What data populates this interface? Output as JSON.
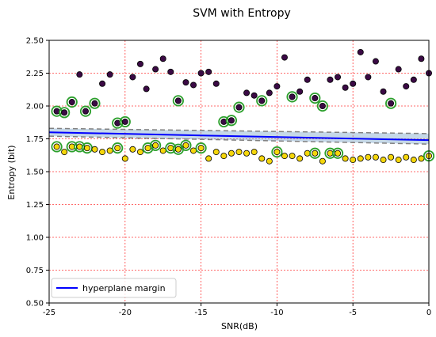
{
  "chart_data": {
    "type": "scatter",
    "title": "SVM with Entropy",
    "xlabel": "SNR(dB)",
    "ylabel": "Entropy (bit)",
    "xlim": [
      -25,
      0
    ],
    "ylim": [
      0.5,
      2.5
    ],
    "xticks": [
      -25,
      -20,
      -15,
      -10,
      -5,
      0
    ],
    "xtick_labels": [
      "-25",
      "-20",
      "-15",
      "-10",
      "-5",
      "0"
    ],
    "yticks": [
      0.5,
      0.75,
      1.0,
      1.25,
      1.5,
      1.75,
      2.0,
      2.25,
      2.5
    ],
    "ytick_labels": [
      "0.50",
      "0.75",
      "1.00",
      "1.25",
      "1.50",
      "1.75",
      "2.00",
      "2.25",
      "2.50"
    ],
    "grid": true,
    "legend_position": "bottom-left",
    "colors": {
      "class_high": "#3b0a45",
      "class_low": "#f5d60a",
      "support_ring": "#2ca02c",
      "hyperplane": "#0000ff",
      "margin_band": "#7fa8cc",
      "margin_lines": "#808080",
      "grid": "#ff3b3b"
    },
    "hyperplane": {
      "name": "hyperplane margin",
      "x": [
        -25,
        0
      ],
      "y": [
        1.8,
        1.74
      ]
    },
    "margin_upper": {
      "x": [
        -25,
        0
      ],
      "y": [
        1.83,
        1.79
      ]
    },
    "margin_lower": {
      "x": [
        -25,
        0
      ],
      "y": [
        1.77,
        1.71
      ]
    },
    "series": [
      {
        "label": "class_high",
        "points": [
          [
            -24.5,
            1.96
          ],
          [
            -24,
            1.95
          ],
          [
            -23.5,
            2.03
          ],
          [
            -23,
            2.24
          ],
          [
            -22.6,
            1.96
          ],
          [
            -22,
            2.02
          ],
          [
            -21.5,
            2.17
          ],
          [
            -21,
            2.24
          ],
          [
            -20.5,
            1.87
          ],
          [
            -20,
            1.88
          ],
          [
            -19.5,
            2.22
          ],
          [
            -19,
            2.32
          ],
          [
            -18.6,
            2.13
          ],
          [
            -18,
            2.28
          ],
          [
            -17.5,
            2.36
          ],
          [
            -17,
            2.26
          ],
          [
            -16.5,
            2.04
          ],
          [
            -16,
            2.18
          ],
          [
            -15.5,
            2.16
          ],
          [
            -15,
            2.25
          ],
          [
            -14.5,
            2.26
          ],
          [
            -14,
            2.17
          ],
          [
            -13.5,
            1.88
          ],
          [
            -13,
            1.89
          ],
          [
            -12.5,
            1.99
          ],
          [
            -12,
            2.1
          ],
          [
            -11.5,
            2.08
          ],
          [
            -11,
            2.04
          ],
          [
            -10.5,
            2.1
          ],
          [
            -10,
            2.15
          ],
          [
            -9.5,
            2.37
          ],
          [
            -9,
            2.07
          ],
          [
            -8.5,
            2.11
          ],
          [
            -8,
            2.2
          ],
          [
            -7.5,
            2.06
          ],
          [
            -7,
            2.0
          ],
          [
            -6.5,
            2.2
          ],
          [
            -6,
            2.22
          ],
          [
            -5.5,
            2.14
          ],
          [
            -5,
            2.17
          ],
          [
            -4.5,
            2.41
          ],
          [
            -4,
            2.22
          ],
          [
            -3.5,
            2.34
          ],
          [
            -3,
            2.11
          ],
          [
            -2.5,
            2.02
          ],
          [
            -2,
            2.28
          ],
          [
            -1.5,
            2.15
          ],
          [
            -1,
            2.2
          ],
          [
            -0.5,
            2.36
          ],
          [
            0,
            2.25
          ]
        ],
        "support": [
          0,
          1,
          2,
          4,
          5,
          8,
          9,
          16,
          22,
          23,
          24,
          27,
          31,
          34,
          35,
          44
        ]
      },
      {
        "label": "class_low",
        "points": [
          [
            -24.5,
            1.69
          ],
          [
            -24,
            1.65
          ],
          [
            -23.5,
            1.69
          ],
          [
            -23,
            1.69
          ],
          [
            -22.5,
            1.68
          ],
          [
            -22,
            1.67
          ],
          [
            -21.5,
            1.65
          ],
          [
            -21,
            1.66
          ],
          [
            -20.5,
            1.68
          ],
          [
            -20,
            1.6
          ],
          [
            -19.5,
            1.67
          ],
          [
            -19,
            1.65
          ],
          [
            -18.5,
            1.68
          ],
          [
            -18,
            1.7
          ],
          [
            -17.5,
            1.66
          ],
          [
            -17,
            1.68
          ],
          [
            -16.5,
            1.67
          ],
          [
            -16,
            1.7
          ],
          [
            -15.5,
            1.66
          ],
          [
            -15,
            1.68
          ],
          [
            -14.5,
            1.6
          ],
          [
            -14,
            1.65
          ],
          [
            -13.5,
            1.62
          ],
          [
            -13,
            1.64
          ],
          [
            -12.5,
            1.65
          ],
          [
            -12,
            1.64
          ],
          [
            -11.5,
            1.65
          ],
          [
            -11,
            1.6
          ],
          [
            -10.5,
            1.58
          ],
          [
            -10,
            1.65
          ],
          [
            -9.5,
            1.62
          ],
          [
            -9,
            1.62
          ],
          [
            -8.5,
            1.6
          ],
          [
            -8,
            1.64
          ],
          [
            -7.5,
            1.64
          ],
          [
            -7,
            1.58
          ],
          [
            -6.5,
            1.64
          ],
          [
            -6,
            1.64
          ],
          [
            -5.5,
            1.6
          ],
          [
            -5,
            1.59
          ],
          [
            -4.5,
            1.6
          ],
          [
            -4,
            1.61
          ],
          [
            -3.5,
            1.61
          ],
          [
            -3,
            1.59
          ],
          [
            -2.5,
            1.61
          ],
          [
            -2,
            1.59
          ],
          [
            -1.5,
            1.61
          ],
          [
            -1,
            1.59
          ],
          [
            -0.5,
            1.6
          ],
          [
            0,
            1.62
          ]
        ],
        "support": [
          0,
          2,
          3,
          4,
          8,
          12,
          13,
          15,
          16,
          17,
          19,
          29,
          34,
          36,
          37,
          49
        ]
      }
    ],
    "legend": [
      {
        "label": "hyperplane margin",
        "color": "#0000ff"
      }
    ]
  }
}
